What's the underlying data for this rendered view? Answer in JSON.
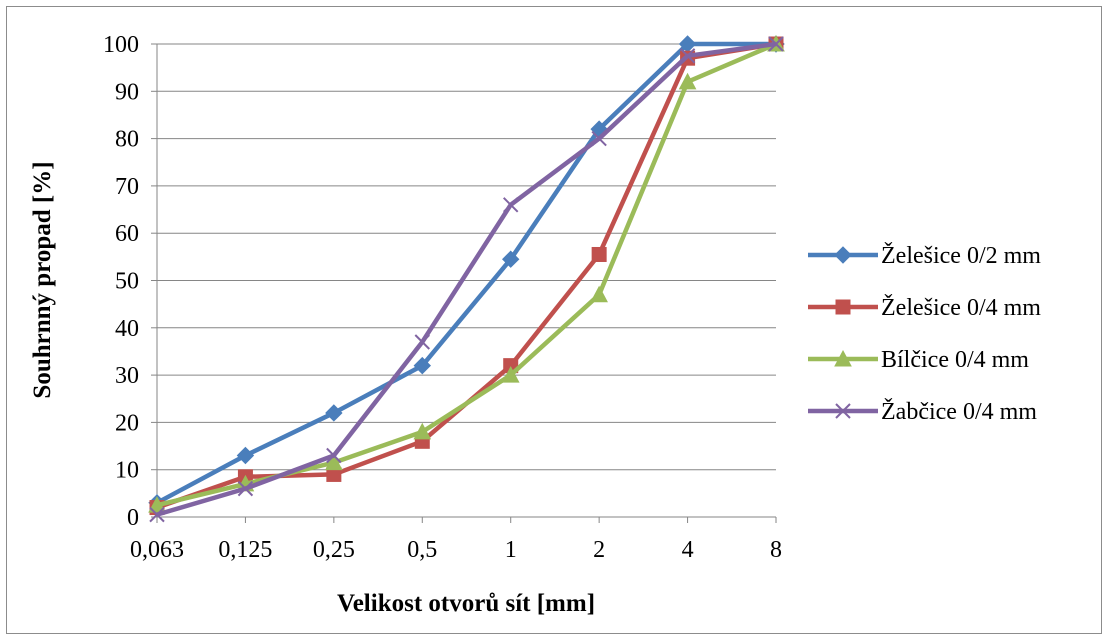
{
  "chart_data": {
    "type": "line",
    "title": "",
    "xlabel": "Velikost otvorů sít [mm]",
    "ylabel": "Souhrnný propad [%]",
    "categories": [
      "0,063",
      "0,125",
      "0,25",
      "0,5",
      "1",
      "2",
      "4",
      "8"
    ],
    "ylim": [
      0,
      100
    ],
    "yticks": [
      "0",
      "10",
      "20",
      "30",
      "40",
      "50",
      "60",
      "70",
      "80",
      "90",
      "100"
    ],
    "grid": true,
    "legend_position": "right",
    "series": [
      {
        "name": "Želešice 0/2 mm",
        "marker": "diamond",
        "color": "#4a7ebb",
        "values": [
          3,
          13,
          22,
          32,
          54.5,
          82,
          100,
          100
        ]
      },
      {
        "name": "Želešice 0/4 mm",
        "marker": "square",
        "color": "#c0504d",
        "values": [
          2,
          8.5,
          9,
          16,
          32,
          55.5,
          97,
          100
        ]
      },
      {
        "name": "Bílčice 0/4 mm",
        "marker": "triangle",
        "color": "#9bbb59",
        "values": [
          2.5,
          7,
          11.5,
          18,
          30,
          47,
          92,
          100
        ]
      },
      {
        "name": "Žabčice 0/4 mm",
        "marker": "x",
        "color": "#8064a2",
        "values": [
          0.5,
          6,
          13,
          37,
          66,
          80,
          97.5,
          100
        ]
      }
    ]
  }
}
